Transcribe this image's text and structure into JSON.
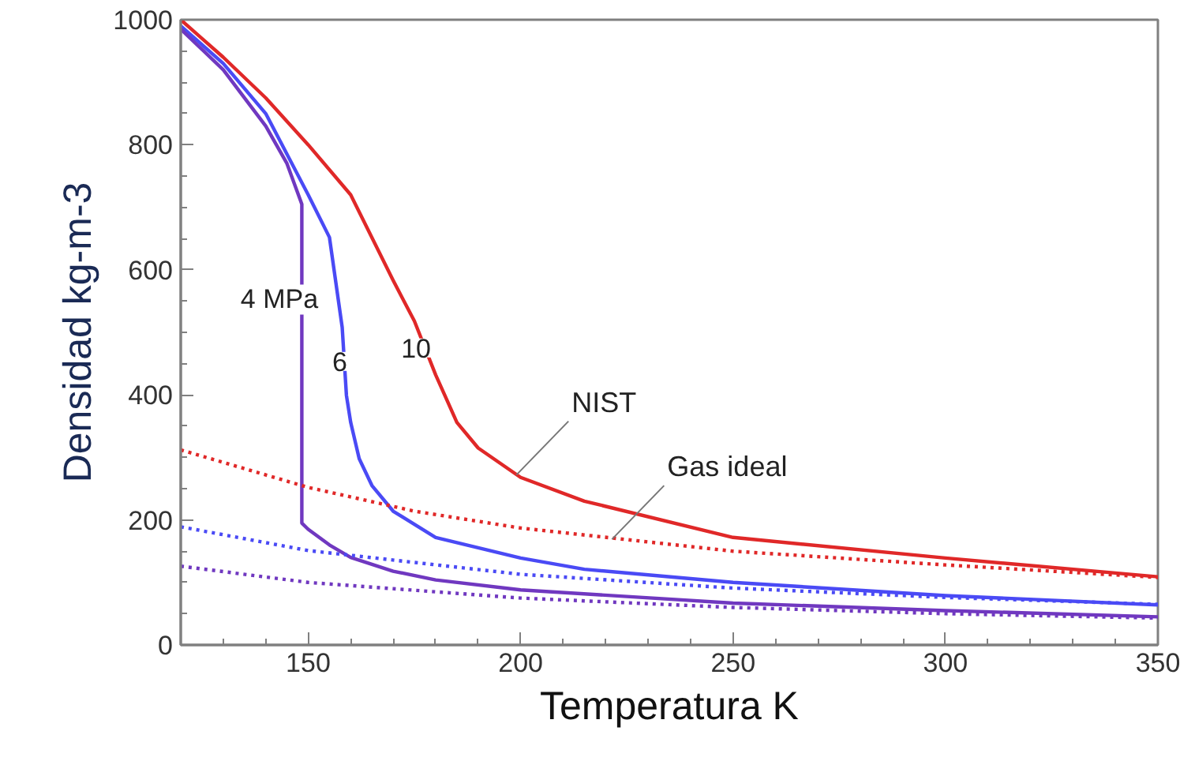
{
  "chart_data": {
    "type": "line",
    "xlabel": "Temperatura K",
    "ylabel": "Densidad kg-m-3",
    "xlim": [
      120,
      350
    ],
    "ylim": [
      0,
      1000
    ],
    "xticks": [
      150,
      200,
      250,
      300,
      350
    ],
    "yticks": [
      0,
      200,
      400,
      600,
      800,
      1000
    ],
    "grid": false,
    "series": [
      {
        "name": "10",
        "color": "#e02828",
        "line_style": "solid",
        "x": [
          120,
          130,
          140,
          150,
          160,
          170,
          175,
          180,
          185,
          190,
          200,
          215,
          250,
          300,
          350
        ],
        "values": [
          1000,
          940,
          875,
          800,
          720,
          583,
          518,
          432,
          356,
          315,
          268,
          230,
          172,
          139,
          109
        ]
      },
      {
        "name": "6",
        "color": "#4a4af5",
        "line_style": "solid",
        "x": [
          120,
          130,
          140,
          150,
          155,
          158,
          159,
          160,
          162,
          165,
          170,
          180,
          200,
          215,
          250,
          300,
          350
        ],
        "values": [
          990,
          930,
          850,
          720,
          652,
          508,
          399,
          356,
          298,
          255,
          214,
          172,
          139,
          121,
          100,
          79,
          64
        ]
      },
      {
        "name": "4 MPa",
        "color": "#7038c0",
        "line_style": "solid",
        "x": [
          120,
          130,
          140,
          145,
          148.5,
          148.5,
          148.5,
          150,
          155,
          160,
          170,
          180,
          200,
          250,
          300,
          350
        ],
        "values": [
          985,
          920,
          830,
          770,
          705,
          400,
          195,
          185,
          160,
          140,
          118,
          104,
          88,
          67,
          55,
          45
        ]
      },
      {
        "color": "#e02828",
        "line_style": "dotted",
        "x": [
          120,
          150,
          175,
          200,
          250,
          300,
          350
        ],
        "values": [
          312,
          252,
          214,
          187,
          150,
          128,
          108
        ]
      },
      {
        "color": "#4a4af5",
        "line_style": "dotted",
        "x": [
          120,
          150,
          200,
          250,
          300,
          350
        ],
        "values": [
          189,
          151,
          113,
          91,
          76,
          65
        ]
      },
      {
        "color": "#7038c0",
        "line_style": "dotted",
        "x": [
          120,
          150,
          200,
          250,
          300,
          350
        ],
        "values": [
          126,
          100,
          75,
          60,
          50,
          43
        ]
      }
    ],
    "annotations": [
      {
        "text": "NIST",
        "x": 199,
        "y": 272
      },
      {
        "text": "Gas ideal",
        "x": 221.5,
        "y": 169
      }
    ]
  }
}
